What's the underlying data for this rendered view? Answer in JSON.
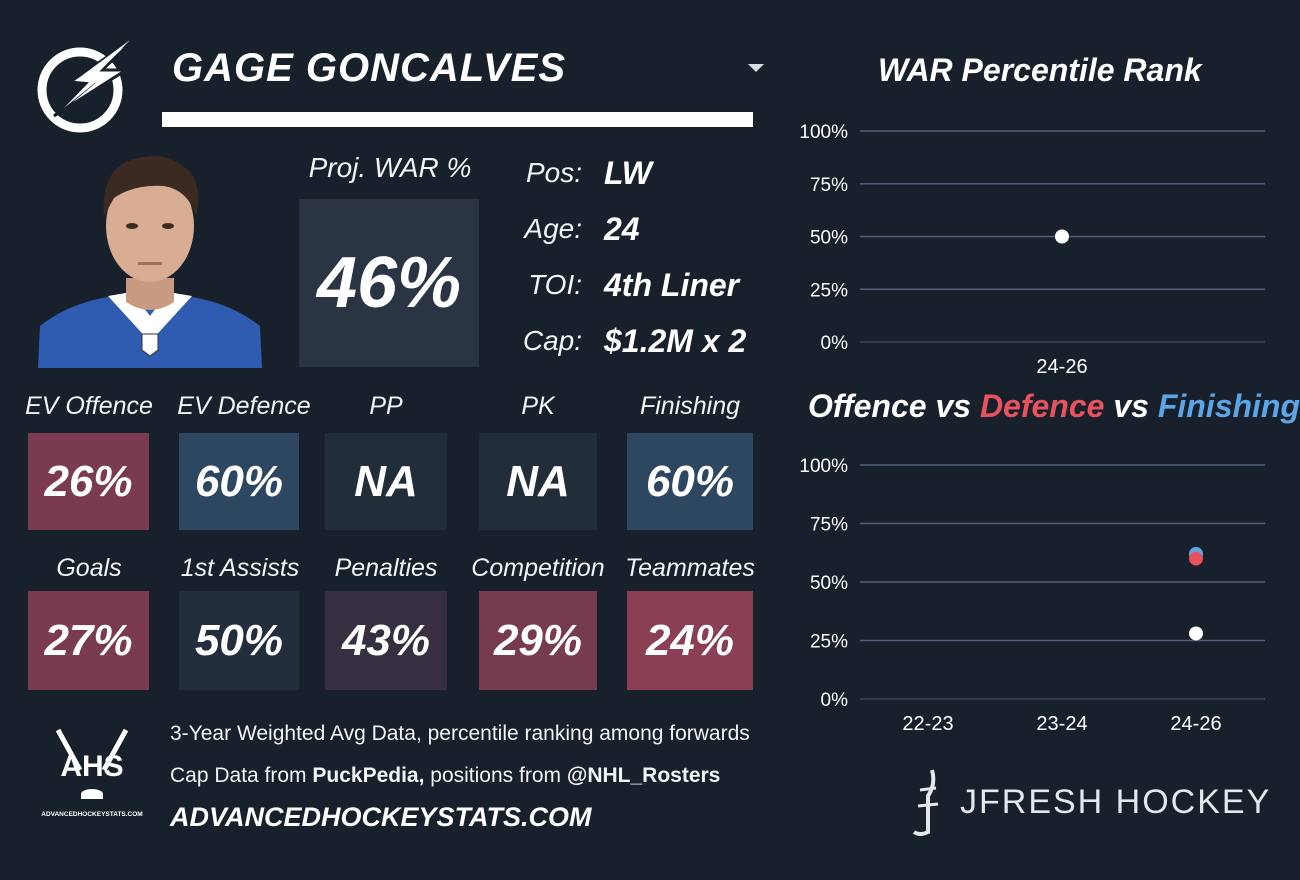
{
  "header": {
    "player_name": "GAGE GONCALVES",
    "team_logo_icon": "lightning-bolt-icon",
    "dropdown_icon": "chevron-down-icon"
  },
  "projection": {
    "label": "Proj. WAR %",
    "value": "46%"
  },
  "info": [
    {
      "key": "Pos:",
      "value": "LW"
    },
    {
      "key": "Age:",
      "value": "24"
    },
    {
      "key": "TOI:",
      "value": "4th Liner"
    },
    {
      "key": "Cap:",
      "value": "$1.2M x 2"
    }
  ],
  "tiles_row1": [
    {
      "label": "EV Offence",
      "value": "26%",
      "color": "#7b3b4f"
    },
    {
      "label": "EV Defence",
      "value": "60%",
      "color": "#2e4760"
    },
    {
      "label": "PP",
      "value": "NA",
      "color": "#222d3a"
    },
    {
      "label": "PK",
      "value": "NA",
      "color": "#222d3a"
    },
    {
      "label": "Finishing",
      "value": "60%",
      "color": "#2e4760"
    }
  ],
  "tiles_row2": [
    {
      "label": "Goals",
      "value": "27%",
      "color": "#7b3b4f"
    },
    {
      "label": "1st Assists",
      "value": "50%",
      "color": "#232d3b"
    },
    {
      "label": "Penalties",
      "value": "43%",
      "color": "#372f40"
    },
    {
      "label": "Competition",
      "value": "29%",
      "color": "#763b4e"
    },
    {
      "label": "Teammates",
      "value": "24%",
      "color": "#8a3f52"
    }
  ],
  "footer": {
    "line1": "3-Year Weighted Avg Data, percentile ranking among forwards",
    "line2_prefix": "Cap Data from ",
    "line2_bold1": "PuckPedia,",
    "line2_mid": " positions from ",
    "line2_bold2": "@NHL_Rosters",
    "site": "ADVANCEDHOCKEYSTATS.COM",
    "ahs_logo_text": "AHS",
    "ahs_logo_subtext": "ADVANCEDHOCKEYSTATS.COM",
    "brand": "JFRESH HOCKEY"
  },
  "chart_data": [
    {
      "type": "scatter",
      "title": "WAR Percentile Rank",
      "categories": [
        "24-26"
      ],
      "y_ticks": [
        "100%",
        "75%",
        "50%",
        "25%",
        "0%"
      ],
      "ylim": [
        0,
        100
      ],
      "series": [
        {
          "values": [
            50
          ],
          "color": "#ffffff"
        }
      ],
      "grid": true
    },
    {
      "type": "scatter",
      "title_parts": [
        {
          "text": "Offence",
          "color": "#ffffff"
        },
        {
          "text": " vs ",
          "color": "#ffffff"
        },
        {
          "text": "Defence",
          "color": "#e8515e"
        },
        {
          "text": " vs ",
          "color": "#ffffff"
        },
        {
          "text": "Finishing",
          "color": "#5aa6e8"
        }
      ],
      "categories": [
        "22-23",
        "23-24",
        "24-26"
      ],
      "y_ticks": [
        "100%",
        "75%",
        "50%",
        "25%",
        "0%"
      ],
      "ylim": [
        0,
        100
      ],
      "series": [
        {
          "values": [
            null,
            null,
            62
          ],
          "color": "#5aa6e8"
        },
        {
          "values": [
            null,
            null,
            60
          ],
          "color": "#e8515e"
        },
        {
          "values": [
            null,
            null,
            28
          ],
          "color": "#ffffff"
        }
      ],
      "grid": true
    }
  ]
}
